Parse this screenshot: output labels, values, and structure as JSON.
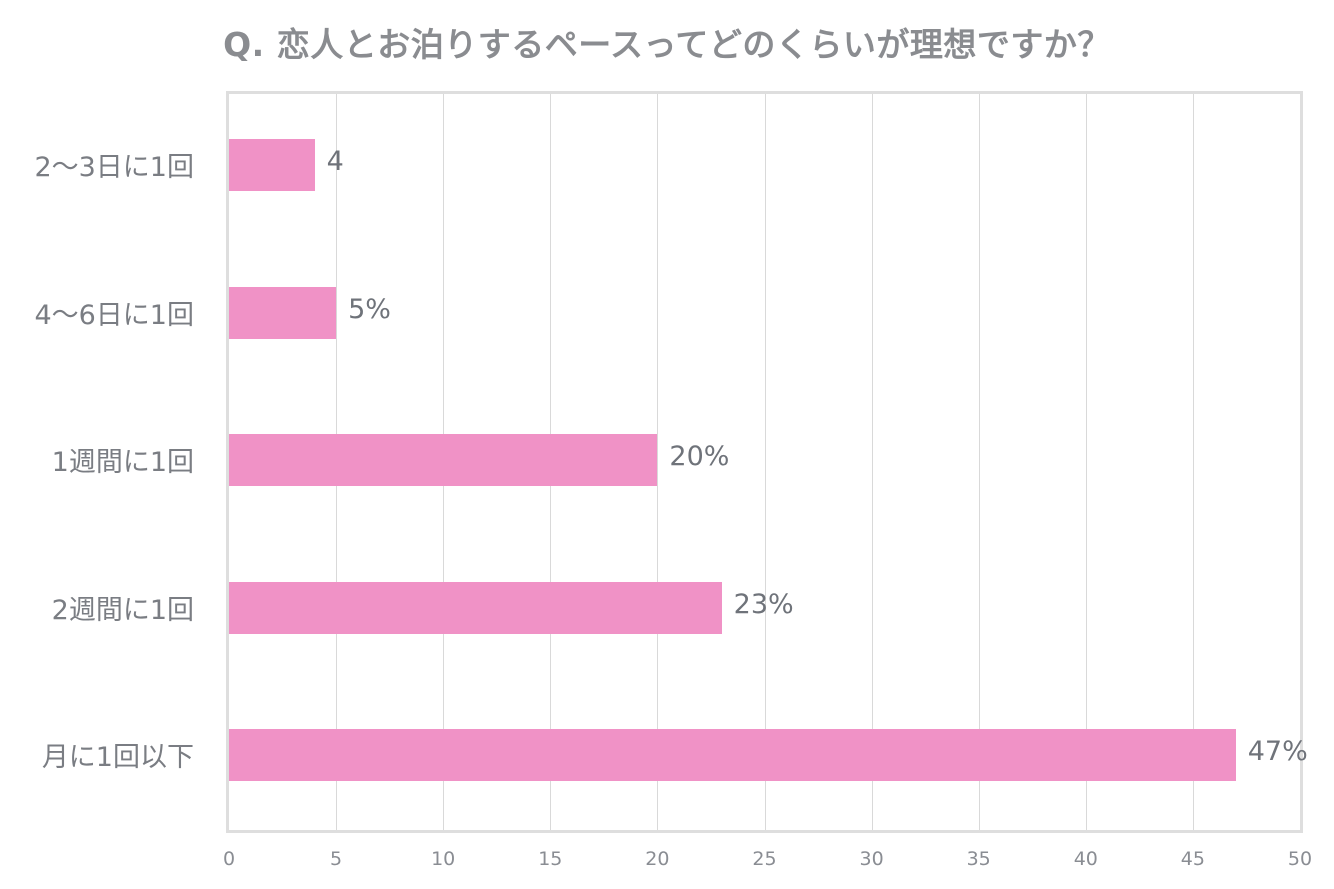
{
  "chart_data": {
    "type": "bar",
    "orientation": "horizontal",
    "title": "Q. 恋人とお泊りするペースってどのくらいが理想ですか？",
    "categories": [
      "2〜3日に1回",
      "4〜6日に1回",
      "1週間に1回",
      "2週間に1回",
      "月に1回以下"
    ],
    "values": [
      4,
      5,
      20,
      23,
      47
    ],
    "data_labels": [
      "4",
      "5%",
      "20%",
      "23%",
      "47%"
    ],
    "xlabel": "",
    "ylabel": "",
    "xlim": [
      0,
      50
    ],
    "xticks": [
      "0",
      "5",
      "10",
      "15",
      "20",
      "25",
      "30",
      "35",
      "40",
      "45",
      "50"
    ],
    "grid": "vertical",
    "legend": "none",
    "colors": {
      "bar": "#f092c6",
      "border": "#dedede",
      "grid": "#d9d9d9",
      "text": "#7f8288"
    }
  }
}
